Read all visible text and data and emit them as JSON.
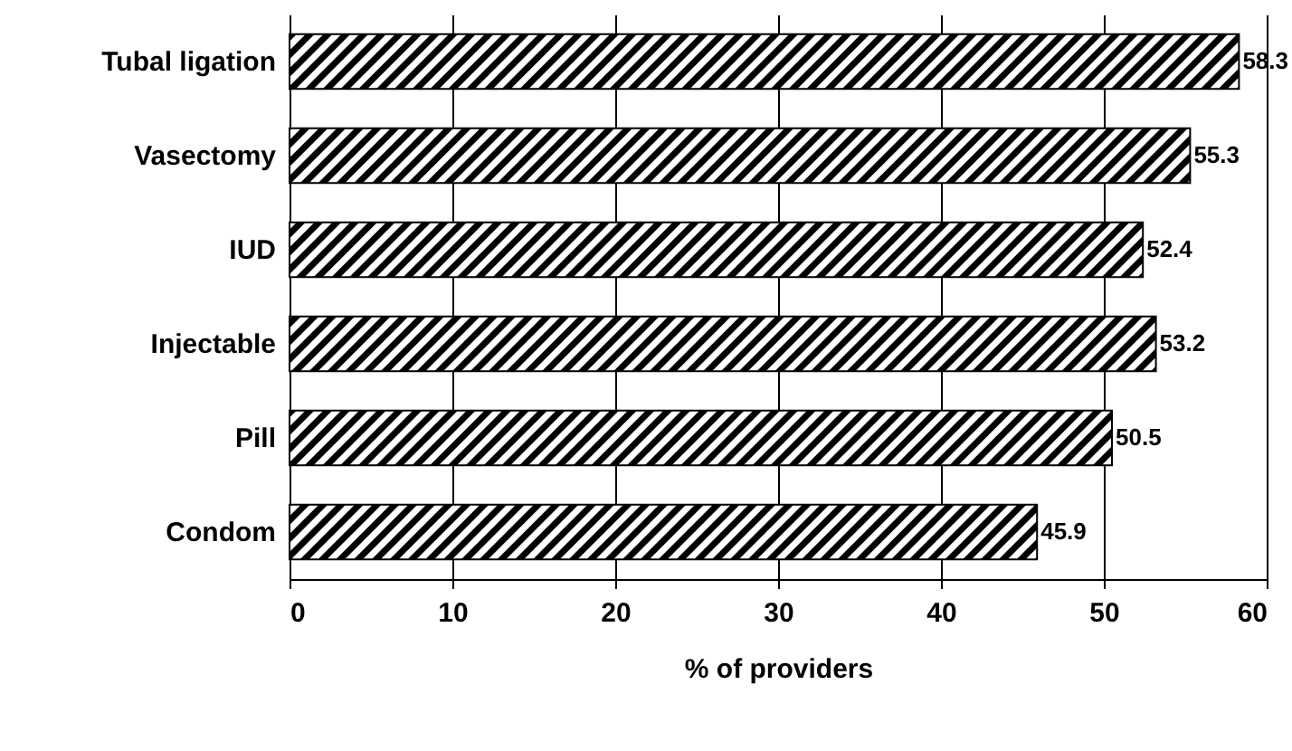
{
  "chart_data": {
    "type": "bar",
    "orientation": "horizontal",
    "xlabel": "% of providers",
    "categories": [
      "Tubal ligation",
      "Vasectomy",
      "IUD",
      "Injectable",
      "Pill",
      "Condom"
    ],
    "values": [
      58.3,
      55.3,
      52.4,
      53.2,
      50.5,
      45.9
    ],
    "color": "#000000",
    "xlim": [
      0,
      60
    ],
    "xticks": [
      0,
      10,
      20,
      30,
      40,
      50,
      60
    ],
    "grid": "x",
    "data_labels": true
  }
}
